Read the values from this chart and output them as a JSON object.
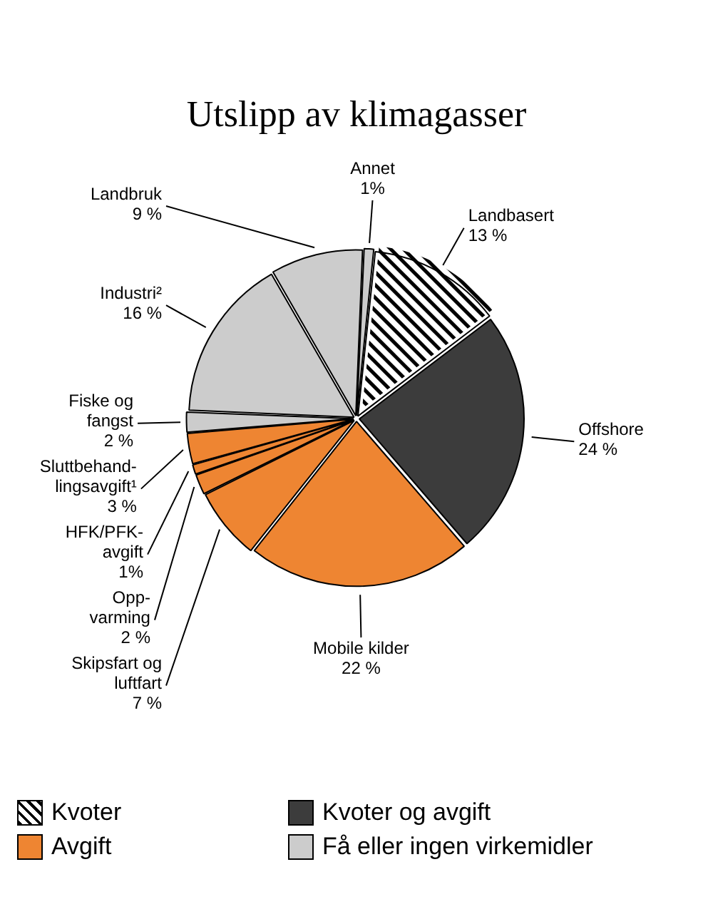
{
  "chart_data": {
    "type": "pie",
    "title": "Utslipp av klimagasser",
    "categories": [
      "Landbasert",
      "Offshore",
      "Mobile kilder",
      "Skipsfart og\nluftfart",
      "Opp-\nvarming",
      "HFK/PFK-\navgift",
      "Sluttbehand-\nlingsavgift¹",
      "Fiske og\nfangst",
      "Industri²",
      "Landbruk",
      "Annet"
    ],
    "values": [
      13,
      24,
      22,
      7,
      2,
      1,
      3,
      2,
      16,
      9,
      1
    ],
    "colors": [
      "#ffffff",
      "#3c3c3c",
      "#ee8532",
      "#ee8532",
      "#ee8532",
      "#ee8532",
      "#ee8532",
      "#cccccc",
      "#cccccc",
      "#cccccc",
      "#cccccc"
    ],
    "value_labels": [
      "13 %",
      "24 %",
      "22 %",
      "7 %",
      "2 %",
      "1%",
      "3 %",
      "2 %",
      "16 %",
      "9 %",
      "1%"
    ],
    "annotations": [
      "Kvoter",
      "Kvoter og avgift",
      "Avgift",
      "Få eller ingen virkemidler"
    ]
  }
}
